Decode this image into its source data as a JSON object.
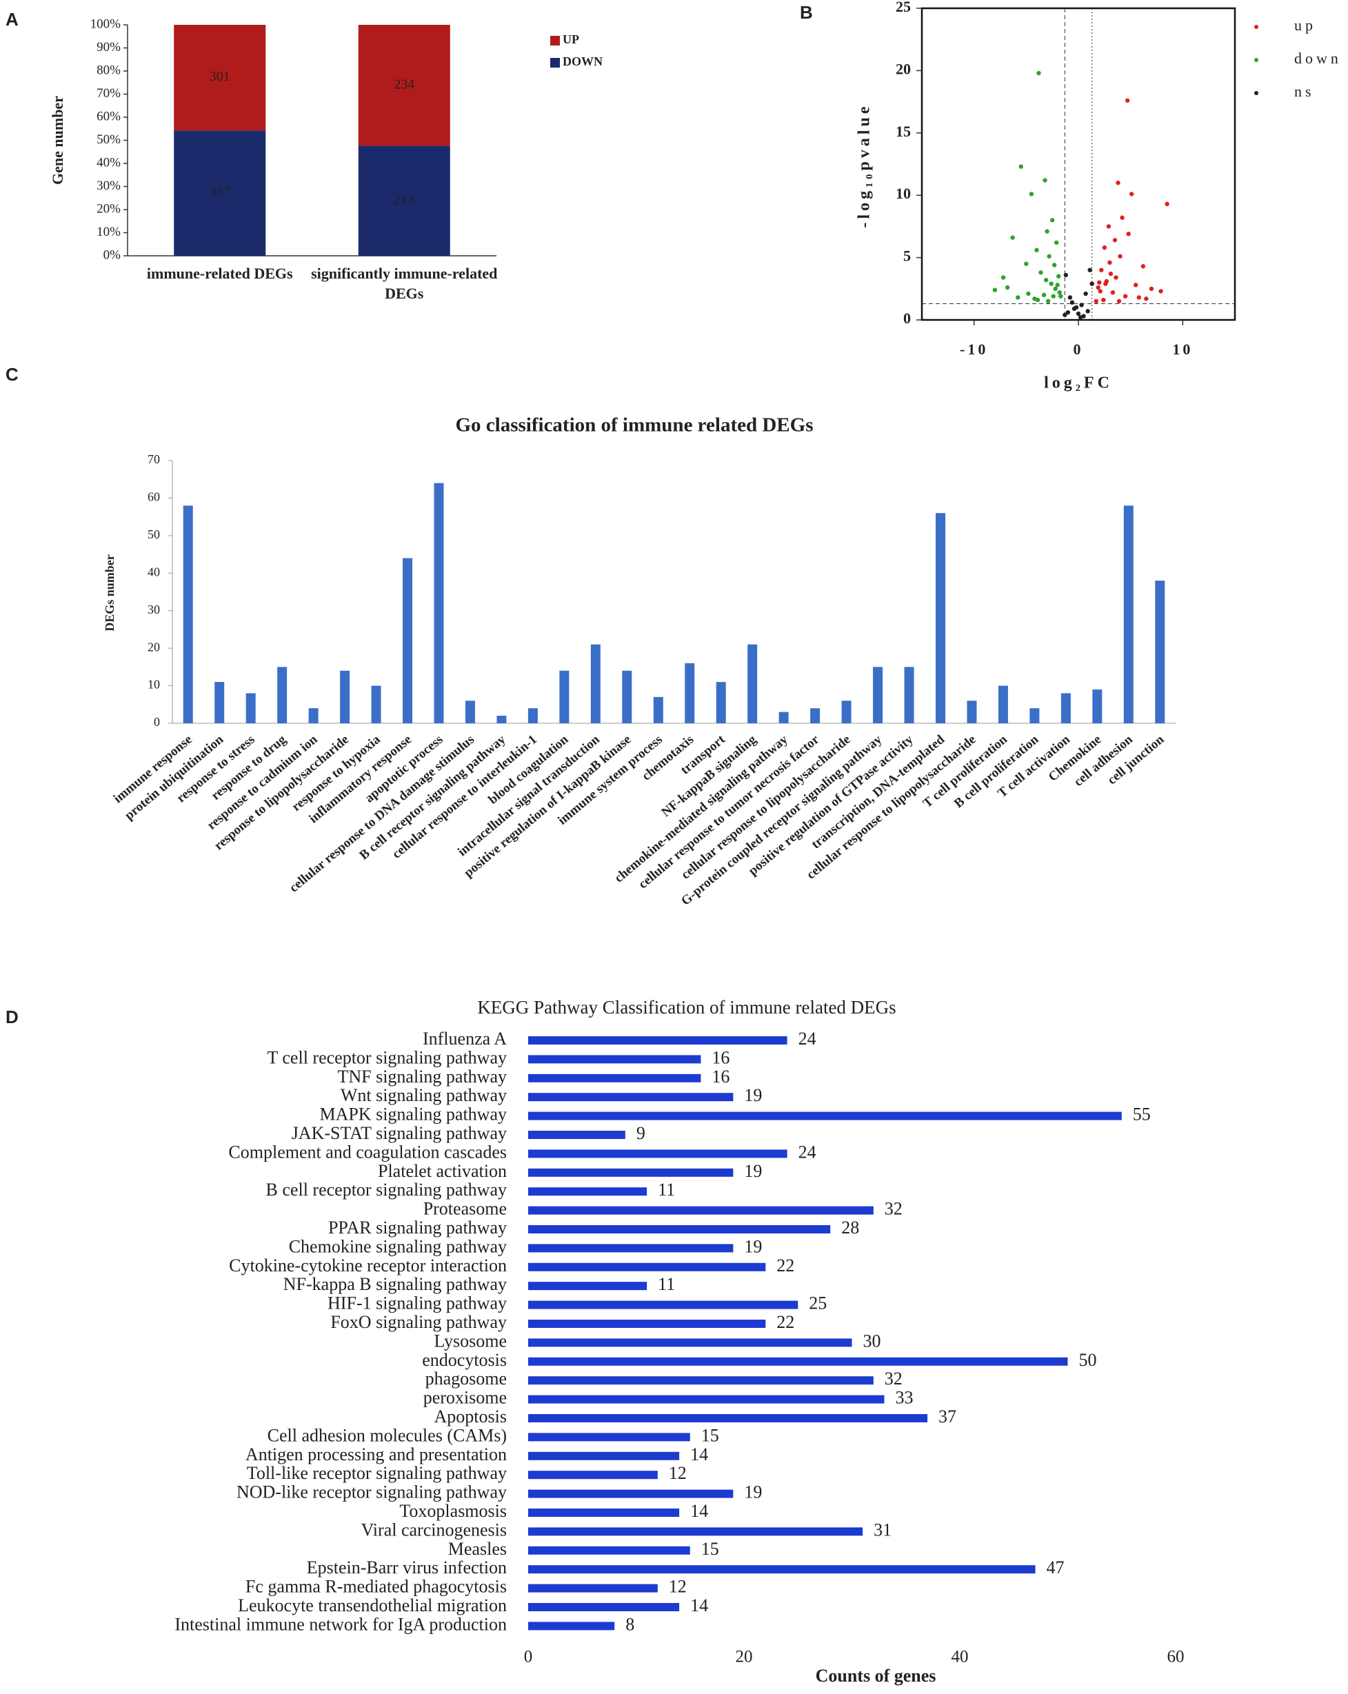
{
  "chart_data": [
    {
      "panel": "A",
      "type": "stacked_percent_bar",
      "ylabel": "Gene number",
      "categories": [
        "immune-related DEGs",
        "significantly immune-related DEGs"
      ],
      "series": [
        {
          "name": "UP",
          "color": "#b01b1b",
          "values": [
            301,
            234
          ]
        },
        {
          "name": "DOWN",
          "color": "#1b2a6b",
          "values": [
            357,
            213
          ]
        }
      ],
      "ylim": [
        0,
        100
      ],
      "yticks": [
        {
          "value": 0,
          "label": "0%"
        },
        {
          "value": 10,
          "label": "10%"
        },
        {
          "value": 20,
          "label": "20%"
        },
        {
          "value": 30,
          "label": "30%"
        },
        {
          "value": 40,
          "label": "40%"
        },
        {
          "value": 50,
          "label": "50%"
        },
        {
          "value": 60,
          "label": "60%"
        },
        {
          "value": 70,
          "label": "70%"
        },
        {
          "value": 80,
          "label": "80%"
        },
        {
          "value": 90,
          "label": "90%"
        },
        {
          "value": 100,
          "label": "100%"
        }
      ]
    },
    {
      "panel": "B",
      "type": "scatter",
      "xlabel": "log₂FC",
      "ylabel": "-log₁₀pvalue",
      "xlim": [
        -15,
        15
      ],
      "ylim": [
        0,
        25
      ],
      "xticks": [
        -10,
        0,
        10
      ],
      "yticks": [
        0,
        5,
        10,
        15,
        20,
        25
      ],
      "thresholds": {
        "x": [
          -1.3,
          1.3
        ],
        "y": 1.3
      },
      "series": [
        {
          "name": "up",
          "color": "#e02020",
          "x": [
            4.7,
            8.5,
            5.1,
            3.8,
            4.2,
            2.9,
            3.5,
            6.2,
            2.5,
            3.1,
            4.0,
            2.2,
            5.5,
            7.0,
            3.3,
            2.7,
            4.5,
            1.9,
            2.4,
            3.6,
            5.8,
            2.1,
            3.0,
            4.8,
            6.5,
            1.7,
            2.6,
            3.9,
            7.9,
            2.0
          ],
          "values": [
            17.6,
            9.3,
            10.1,
            11.0,
            8.2,
            7.5,
            6.4,
            4.3,
            5.8,
            3.7,
            5.1,
            4.0,
            2.8,
            2.5,
            2.2,
            3.1,
            1.9,
            2.6,
            1.6,
            3.4,
            1.8,
            2.3,
            4.6,
            6.9,
            1.7,
            1.5,
            2.9,
            1.5,
            2.3,
            3.0
          ]
        },
        {
          "name": "down",
          "color": "#2aa52a",
          "x": [
            -3.8,
            -5.5,
            -3.2,
            -4.5,
            -6.3,
            -7.2,
            -2.5,
            -3.0,
            -2.1,
            -4.0,
            -5.0,
            -2.8,
            -3.6,
            -2.3,
            -1.9,
            -8.0,
            -6.8,
            -2.6,
            -4.8,
            -3.3,
            -2.0,
            -5.8,
            -2.4,
            -3.9,
            -1.8,
            -2.9,
            -4.2,
            -2.2,
            -3.1,
            -1.7
          ],
          "values": [
            19.8,
            12.3,
            11.2,
            10.1,
            6.6,
            3.4,
            8.0,
            7.1,
            6.2,
            5.6,
            4.5,
            5.1,
            3.8,
            4.4,
            3.5,
            2.4,
            2.6,
            2.9,
            2.1,
            2.0,
            2.8,
            1.8,
            1.9,
            1.6,
            2.2,
            1.5,
            1.7,
            2.5,
            3.2,
            1.9
          ]
        },
        {
          "name": "ns",
          "color": "#222222",
          "x": [
            -1.2,
            -0.8,
            -0.4,
            0,
            0.3,
            0.7,
            1.1,
            -1.0,
            0.5,
            -0.2,
            0.9,
            1.3,
            -0.6,
            0.2,
            -1.3
          ],
          "values": [
            3.6,
            1.8,
            0.9,
            0.5,
            1.2,
            2.1,
            4.0,
            0.6,
            0.3,
            1.0,
            0.7,
            2.9,
            1.4,
            0.2,
            0.4
          ]
        }
      ]
    },
    {
      "panel": "C",
      "type": "bar",
      "title": "Go classification of immune related DEGs",
      "ylabel": "DEGs number",
      "color": "#3a6fc8",
      "categories": [
        "immune response",
        "protein ubiquitination",
        "response to stress",
        "response to drug",
        "response to cadmium ion",
        "response to lipopolysaccharide",
        "response to hypoxia",
        "inflammatory response",
        "apoptotic process",
        "cellular response to DNA damage stimulus",
        "B cell receptor signaling pathway",
        "cellular response to interleukin-1",
        "blood coagulation",
        "intracellular signal transduction",
        "positive regulation of I-kappaB kinase",
        "immune system process",
        "chemotaxis",
        "transport",
        "NF-kappaB signaling",
        "chemokine-mediated signaling pathway",
        "cellular response to tumor necrosis factor",
        "cellular response to lipopolysaccharide",
        "G-protein coupled receptor signaling pathway",
        "positive regulation of GTPase activity",
        "transcription, DNA-templated",
        "cellular response to lipopolysaccharide",
        "T cell proliferation",
        "B cell proliferation",
        "T cell activation",
        "Chemokine",
        "cell adhesion",
        "cell junction"
      ],
      "values": [
        58,
        11,
        8,
        15,
        4,
        14,
        10,
        44,
        64,
        6,
        2,
        4,
        14,
        21,
        14,
        7,
        16,
        11,
        21,
        3,
        4,
        6,
        15,
        15,
        56,
        6,
        10,
        4,
        8,
        9,
        58,
        38
      ],
      "ylim": [
        0,
        70
      ],
      "yticks": [
        0,
        10,
        20,
        30,
        40,
        50,
        60,
        70
      ]
    },
    {
      "panel": "D",
      "type": "hbar",
      "title": "KEGG Pathway Classification of immune related DEGs",
      "xlabel": "Counts of genes",
      "color": "#1c3bd0",
      "categories": [
        "Influenza A",
        "T cell receptor signaling pathway",
        "TNF signaling pathway",
        "Wnt signaling pathway",
        "MAPK signaling pathway",
        "JAK-STAT signaling pathway",
        "Complement and coagulation cascades",
        "Platelet activation",
        "B cell receptor signaling pathway",
        "Proteasome",
        "PPAR signaling pathway",
        "Chemokine signaling pathway",
        "Cytokine-cytokine receptor interaction",
        "NF-kappa B signaling pathway",
        "HIF-1 signaling pathway",
        "FoxO signaling pathway",
        "Lysosome",
        "endocytosis",
        "phagosome",
        "peroxisome",
        "Apoptosis",
        "Cell adhesion molecules (CAMs)",
        "Antigen processing and presentation",
        "Toll-like receptor signaling pathway",
        "NOD-like receptor signaling pathway",
        "Toxoplasmosis",
        "Viral carcinogenesis",
        "Measles",
        "Epstein-Barr virus infection",
        "Fc gamma R-mediated phagocytosis",
        "Leukocyte transendothelial migration",
        "Intestinal immune network for IgA production"
      ],
      "values": [
        24,
        16,
        16,
        19,
        55,
        9,
        24,
        19,
        11,
        32,
        28,
        19,
        22,
        11,
        25,
        22,
        30,
        50,
        32,
        33,
        37,
        15,
        14,
        12,
        19,
        14,
        31,
        15,
        47,
        12,
        14,
        8
      ],
      "xlim": [
        0,
        60
      ],
      "xticks": [
        0,
        20,
        40,
        60
      ]
    }
  ]
}
